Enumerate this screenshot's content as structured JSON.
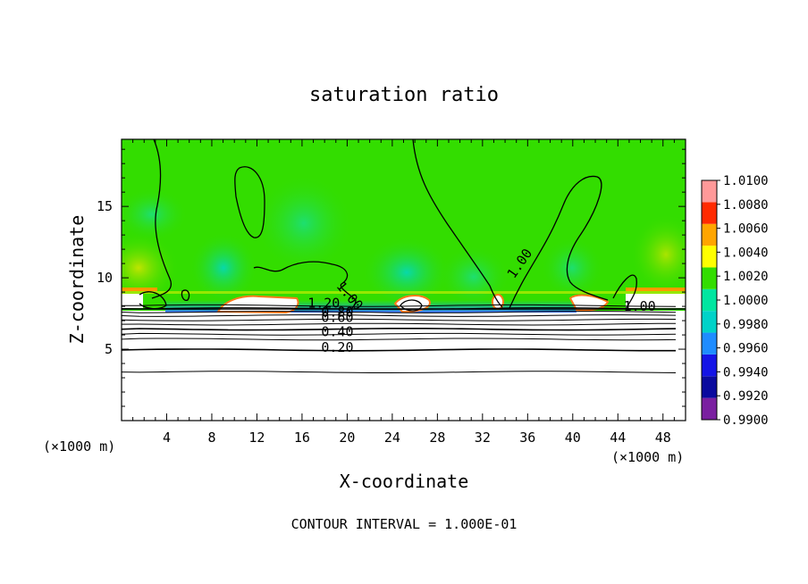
{
  "chart_data": {
    "type": "heatmap",
    "title": "saturation ratio",
    "xlabel": "X-coordinate",
    "ylabel": "Z-coordinate",
    "x_unit_left": "(×1000 m)",
    "x_unit_right": "(×1000 m)",
    "footer": "CONTOUR INTERVAL = 1.000E-01",
    "xlim": [
      0,
      50
    ],
    "ylim": [
      0,
      19.7
    ],
    "x_ticks": [
      4,
      8,
      12,
      16,
      20,
      24,
      28,
      32,
      36,
      40,
      44,
      48
    ],
    "y_ticks": [
      5,
      10,
      15
    ],
    "colorbar": {
      "levels": [
        0.99,
        0.992,
        0.994,
        0.996,
        0.998,
        1.0,
        1.002,
        1.004,
        1.006,
        1.008,
        1.01
      ],
      "tick_labels": [
        "0.9900",
        "0.9920",
        "0.9940",
        "0.9960",
        "0.9980",
        "1.0000",
        "1.0020",
        "1.0040",
        "1.0060",
        "1.0080",
        "1.0100"
      ],
      "colors": [
        "#7a1fa0",
        "#0a0a9e",
        "#1414e6",
        "#1e8cff",
        "#00d2c8",
        "#00e6a0",
        "#33dd00",
        "#ffff00",
        "#ffa500",
        "#ff2a00",
        "#ff9999"
      ]
    },
    "contour_labels": [
      {
        "text": "1.20",
        "x": 16.5,
        "z": 7.9
      },
      {
        "text": "0.80",
        "x": 17.7,
        "z": 7.3
      },
      {
        "text": "0.60",
        "x": 17.7,
        "z": 6.9
      },
      {
        "text": "0.40",
        "x": 17.7,
        "z": 5.9
      },
      {
        "text": "0.20",
        "x": 17.7,
        "z": 4.8
      },
      {
        "text": "1.00",
        "x": 19.0,
        "z": 9.4
      },
      {
        "text": "1.00",
        "x": 34.8,
        "z": 9.9
      },
      {
        "text": "1.00",
        "x": 44.5,
        "z": 7.7
      }
    ],
    "horizontal_contours_z": [
      3.4,
      4.95,
      5.7,
      6.05,
      6.4,
      6.75,
      7.05,
      7.35,
      7.6,
      7.85,
      8.05
    ]
  }
}
